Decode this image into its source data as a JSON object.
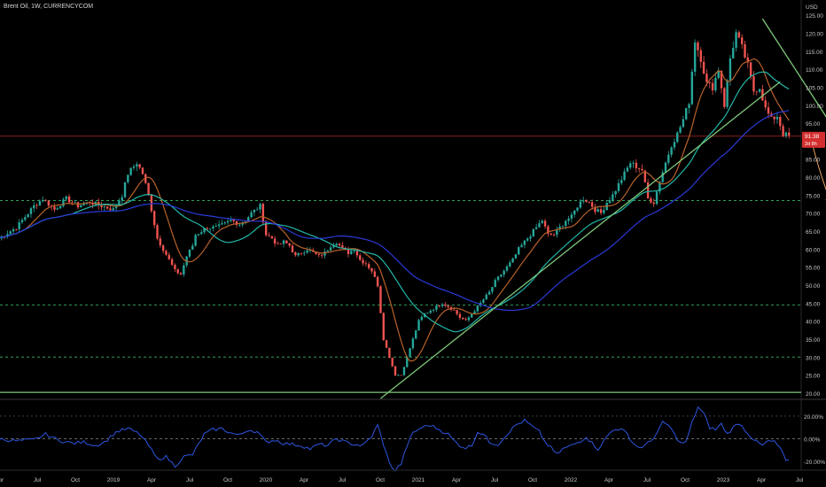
{
  "symbol": "Brent Oil, 1W, CURRENCYCOM",
  "colors": {
    "background": "#000000",
    "up": "#26a69a",
    "down": "#ef5350",
    "ma_orange": "#b8622a",
    "ma_teal": "#22b7a8",
    "ma_blue": "#2b39d8",
    "trend": "#7fc97a",
    "level_green": "#2f9e57",
    "price_line": "#8b1e1e",
    "arrow": "#e8a060",
    "osc": "#2d55e0"
  },
  "chart_data": {
    "type": "candlestick",
    "currency": "USD",
    "ylim": [
      18.5,
      128
    ],
    "price_ticks": [
      "125.00",
      "120.00",
      "115.00",
      "110.00",
      "105.00",
      "100.00",
      "95.00",
      "90.00",
      "85.00",
      "80.00",
      "75.00",
      "70.00",
      "65.00",
      "60.00",
      "55.00",
      "50.00",
      "45.00",
      "40.00",
      "35.00",
      "30.00",
      "25.00",
      "20.00"
    ],
    "x_labels": [
      "Apr",
      "Jul",
      "Oct",
      "2019",
      "Apr",
      "Jul",
      "Oct",
      "2020",
      "Apr",
      "Jul",
      "Oct",
      "2021",
      "Apr",
      "Jul",
      "Oct",
      "2022",
      "Apr",
      "Jul",
      "Oct",
      "2023",
      "Apr",
      "Jul"
    ],
    "last_price": "91.38",
    "countdown": "2d 8h",
    "weeks": 224,
    "close_path": [
      [
        0,
        63
      ],
      [
        6,
        66
      ],
      [
        12,
        72
      ],
      [
        15,
        74
      ],
      [
        19,
        71
      ],
      [
        23,
        74
      ],
      [
        27,
        72
      ],
      [
        31,
        73
      ],
      [
        35,
        72
      ],
      [
        39,
        71
      ],
      [
        42,
        75
      ],
      [
        44,
        81
      ],
      [
        47,
        84
      ],
      [
        49,
        81
      ],
      [
        51,
        75
      ],
      [
        52,
        71
      ],
      [
        54,
        63
      ],
      [
        56,
        60
      ],
      [
        58,
        57
      ],
      [
        60,
        54
      ],
      [
        62,
        53
      ],
      [
        64,
        58
      ],
      [
        66,
        61
      ],
      [
        67,
        64
      ],
      [
        71,
        66
      ],
      [
        74,
        66
      ],
      [
        77,
        67
      ],
      [
        79,
        68
      ],
      [
        82,
        67
      ],
      [
        84,
        68
      ],
      [
        86,
        70
      ],
      [
        89,
        72
      ],
      [
        91,
        64
      ],
      [
        93,
        63
      ],
      [
        95,
        61
      ],
      [
        97,
        62
      ],
      [
        99,
        61
      ],
      [
        101,
        58
      ],
      [
        103,
        59
      ],
      [
        105,
        60
      ],
      [
        107,
        59
      ],
      [
        109,
        58
      ],
      [
        111,
        59
      ],
      [
        113,
        61
      ],
      [
        115,
        62
      ],
      [
        117,
        60
      ],
      [
        119,
        59
      ],
      [
        121,
        60
      ],
      [
        123,
        57
      ],
      [
        125,
        56
      ],
      [
        127,
        54
      ],
      [
        129,
        50
      ],
      [
        131,
        35
      ],
      [
        133,
        30
      ],
      [
        135,
        25
      ],
      [
        137,
        25
      ],
      [
        139,
        30
      ],
      [
        141,
        35
      ],
      [
        143,
        40
      ],
      [
        145,
        42
      ],
      [
        147,
        43
      ],
      [
        149,
        44
      ],
      [
        151,
        45
      ],
      [
        153,
        44
      ],
      [
        155,
        43
      ],
      [
        157,
        41
      ],
      [
        159,
        40
      ],
      [
        161,
        42
      ],
      [
        163,
        44
      ],
      [
        165,
        46
      ],
      [
        167,
        48
      ],
      [
        169,
        51
      ],
      [
        171,
        53
      ],
      [
        173,
        55
      ],
      [
        175,
        57
      ],
      [
        177,
        60
      ],
      [
        179,
        62
      ],
      [
        181,
        64
      ],
      [
        183,
        66
      ],
      [
        185,
        68
      ],
      [
        187,
        64
      ],
      [
        189,
        64
      ],
      [
        191,
        66
      ],
      [
        193,
        68
      ],
      [
        195,
        69
      ],
      [
        197,
        72
      ],
      [
        199,
        74
      ],
      [
        201,
        73
      ],
      [
        203,
        71
      ],
      [
        205,
        70
      ],
      [
        207,
        73
      ],
      [
        209,
        75
      ],
      [
        211,
        78
      ],
      [
        213,
        81
      ],
      [
        215,
        84
      ],
      [
        217,
        83
      ],
      [
        219,
        82
      ],
      [
        221,
        74
      ],
      [
        223,
        73
      ],
      [
        225,
        79
      ],
      [
        227,
        84
      ],
      [
        229,
        89
      ],
      [
        231,
        92
      ],
      [
        233,
        96
      ],
      [
        235,
        101
      ],
      [
        237,
        118
      ],
      [
        239,
        113
      ],
      [
        241,
        106
      ],
      [
        243,
        105
      ],
      [
        245,
        110
      ],
      [
        247,
        100
      ],
      [
        249,
        113
      ],
      [
        251,
        120
      ],
      [
        253,
        116
      ],
      [
        255,
        111
      ],
      [
        257,
        104
      ],
      [
        259,
        105
      ],
      [
        261,
        99
      ],
      [
        263,
        96
      ],
      [
        265,
        97
      ],
      [
        267,
        92
      ],
      [
        269,
        91.4
      ]
    ],
    "wick_spread": 0.016,
    "body_spread": 0.009,
    "candles_seed": 7,
    "ma_orange_window": 10,
    "ma_teal_window": 26,
    "ma_blue_window": 52,
    "trendlines": [
      {
        "name": "rising-support",
        "from": [
          130,
          18.5
        ],
        "to": [
          266,
          106.5
        ]
      },
      {
        "name": "falling-resistance",
        "from": [
          260,
          124
        ],
        "to": [
          326,
          41
        ]
      }
    ],
    "levels": [
      {
        "name": "support-20",
        "price": 20.2,
        "style": "solid"
      },
      {
        "name": "level-30",
        "price": 30,
        "style": "dashed"
      },
      {
        "name": "level-44",
        "price": 44.5,
        "style": "dashed"
      },
      {
        "name": "level-73",
        "price": 73.5,
        "style": "dashed"
      },
      {
        "name": "last-price",
        "price": 91.4,
        "style": "solid"
      }
    ],
    "projection_arrow": {
      "from": [
        277,
        89
      ],
      "to": [
        283,
        73.5
      ]
    },
    "oscillator": {
      "ylim": [
        -27,
        34
      ],
      "ticks": [
        "20.00%",
        "0.00%",
        "-20.00%"
      ],
      "zero_line": 0,
      "upper_line": 20,
      "values_path": [
        [
          0,
          0
        ],
        [
          6,
          -2
        ],
        [
          12,
          -1
        ],
        [
          16,
          4
        ],
        [
          20,
          -1
        ],
        [
          25,
          -4
        ],
        [
          29,
          -3
        ],
        [
          33,
          -6
        ],
        [
          36,
          -3
        ],
        [
          40,
          6
        ],
        [
          44,
          9
        ],
        [
          48,
          4
        ],
        [
          51,
          -6
        ],
        [
          54,
          -18
        ],
        [
          57,
          -16
        ],
        [
          60,
          -24
        ],
        [
          63,
          -16
        ],
        [
          66,
          -14
        ],
        [
          68,
          -5
        ],
        [
          70,
          4
        ],
        [
          73,
          8
        ],
        [
          76,
          9
        ],
        [
          79,
          5
        ],
        [
          82,
          3
        ],
        [
          85,
          8
        ],
        [
          88,
          6
        ],
        [
          91,
          -3
        ],
        [
          94,
          -1
        ],
        [
          97,
          -4
        ],
        [
          100,
          -5
        ],
        [
          103,
          -6
        ],
        [
          106,
          -9
        ],
        [
          109,
          -5
        ],
        [
          112,
          -6
        ],
        [
          115,
          0
        ],
        [
          118,
          -3
        ],
        [
          121,
          -5
        ],
        [
          124,
          -6
        ],
        [
          127,
          2
        ],
        [
          129,
          12
        ],
        [
          131,
          -5
        ],
        [
          133,
          -22
        ],
        [
          135,
          -28
        ],
        [
          137,
          -22
        ],
        [
          139,
          -6
        ],
        [
          141,
          5
        ],
        [
          144,
          10
        ],
        [
          147,
          12
        ],
        [
          150,
          8
        ],
        [
          153,
          4
        ],
        [
          155,
          -2
        ],
        [
          157,
          -6
        ],
        [
          159,
          -8
        ],
        [
          161,
          -6
        ],
        [
          163,
          6
        ],
        [
          165,
          4
        ],
        [
          167,
          -3
        ],
        [
          170,
          -5
        ],
        [
          173,
          4
        ],
        [
          176,
          12
        ],
        [
          179,
          16
        ],
        [
          181,
          12
        ],
        [
          184,
          6
        ],
        [
          186,
          -3
        ],
        [
          188,
          -8
        ],
        [
          190,
          -14
        ],
        [
          192,
          -9
        ],
        [
          195,
          -6
        ],
        [
          198,
          -2
        ],
        [
          200,
          2
        ],
        [
          202,
          -4
        ],
        [
          204,
          -9
        ],
        [
          206,
          -2
        ],
        [
          208,
          5
        ],
        [
          210,
          9
        ],
        [
          212,
          8
        ],
        [
          214,
          4
        ],
        [
          216,
          -4
        ],
        [
          218,
          -8
        ],
        [
          220,
          -6
        ],
        [
          222,
          -2
        ],
        [
          224,
          5
        ],
        [
          226,
          14
        ],
        [
          228,
          12
        ],
        [
          230,
          4
        ],
        [
          232,
          -4
        ],
        [
          234,
          -3
        ],
        [
          236,
          14
        ],
        [
          238,
          28
        ],
        [
          240,
          22
        ],
        [
          242,
          10
        ],
        [
          244,
          8
        ],
        [
          246,
          13
        ],
        [
          248,
          4
        ],
        [
          250,
          10
        ],
        [
          252,
          14
        ],
        [
          254,
          8
        ],
        [
          256,
          2
        ],
        [
          258,
          -3
        ],
        [
          260,
          -6
        ],
        [
          262,
          -2
        ],
        [
          264,
          -3
        ],
        [
          266,
          -8
        ],
        [
          268,
          -20
        ],
        [
          269,
          -20
        ]
      ]
    }
  }
}
